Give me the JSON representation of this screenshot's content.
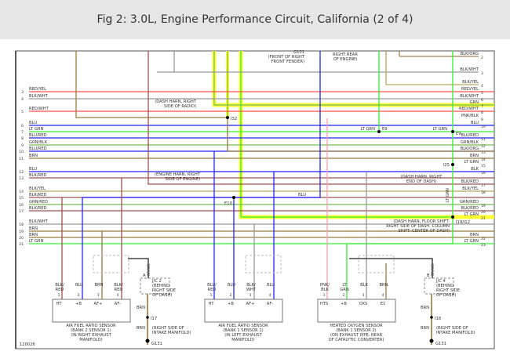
{
  "title": "Fig 2: 3.0L, Engine Performance Circuit, California (2 of 4)",
  "figure_id": "120026",
  "wire_colors": {
    "RED": "#ff4d4d",
    "BLK": "#999999",
    "BLU": "#2222ff",
    "LTGRN": "#33ee33",
    "GRN": "#77bb55",
    "BRN": "#9b7a3a",
    "PNK": "#f0a0b0",
    "BLKRED": "#a05050",
    "BLKYEL": "#b0a860",
    "BLKORG": "#a08050",
    "YEL": "#ffff33"
  },
  "left_wires": [
    {
      "n": "3",
      "label": "RED/YEL",
      "c": "RED"
    },
    {
      "n": "4",
      "label": "BLK/WHT",
      "c": "BLK"
    },
    {
      "n": "5",
      "label": "RED/WHT",
      "c": "RED"
    },
    {
      "n": "6",
      "label": "BLU",
      "c": "BLU"
    },
    {
      "n": "7",
      "label": "LT GRN",
      "c": "LTGRN"
    },
    {
      "n": "8",
      "label": "BLU/RED",
      "c": "BLU"
    },
    {
      "n": "9",
      "label": "GRN/BLK",
      "c": "GRN"
    },
    {
      "n": "10",
      "label": "BLU/RED",
      "c": "BLU"
    },
    {
      "n": "11",
      "label": "BRN",
      "c": "BRN"
    },
    {
      "n": "12",
      "label": "BLU",
      "c": "BLU"
    },
    {
      "n": "13",
      "label": "BLK/RED",
      "c": "BLKRED"
    },
    {
      "n": "14",
      "label": "BLK/YEL",
      "c": "BLKYEL"
    },
    {
      "n": "15",
      "label": "BLK/RED",
      "c": "BLKRED"
    },
    {
      "n": "16",
      "label": "GRN/RED",
      "c": "GRN"
    },
    {
      "n": "17",
      "label": "BLK/RED",
      "c": "BLKRED"
    },
    {
      "n": "18",
      "label": "BLK/WHT",
      "c": "BLK"
    },
    {
      "n": "19",
      "label": "BRN",
      "c": "BRN"
    },
    {
      "n": "20",
      "label": "BRN",
      "c": "BRN"
    },
    {
      "n": "21",
      "label": "LT GRN",
      "c": "LTGRN"
    }
  ],
  "right_wires": [
    {
      "n": "2",
      "label": "BLK/ORG",
      "c": "BLKORG"
    },
    {
      "n": "3",
      "label": "BLK/WHT",
      "c": "BLK"
    },
    {
      "n": "4",
      "label": "BLK/YEL",
      "c": "BLKYEL"
    },
    {
      "n": "5",
      "label": "RED/YEL",
      "c": "RED"
    },
    {
      "n": "6",
      "label": "BLK/WHT",
      "c": "BLK"
    },
    {
      "n": "7",
      "label": "GRN",
      "c": "GRN"
    },
    {
      "n": "8",
      "label": "RED/WHT",
      "c": "RED"
    },
    {
      "n": "9",
      "label": "PNK/BLK",
      "c": "PNK"
    },
    {
      "n": "10",
      "label": "BLU",
      "c": "BLU"
    },
    {
      "n": "11",
      "label": "BLU/RED",
      "c": "BLU"
    },
    {
      "n": "12",
      "label": "GRN/BLK",
      "c": "GRN"
    },
    {
      "n": "13",
      "label": "BLK/ORG",
      "c": "BLKORG"
    },
    {
      "n": "14",
      "label": "BRN",
      "c": "BRN"
    },
    {
      "n": "15",
      "label": "LT GRN",
      "c": "LTGRN"
    },
    {
      "n": "16",
      "label": "BLK",
      "c": "BLK"
    },
    {
      "n": "17",
      "label": "BLK/RED",
      "c": "BLKRED"
    },
    {
      "n": "18",
      "label": "BLK/YEL",
      "c": "BLKYEL"
    },
    {
      "n": "19",
      "label": "GRN/RED",
      "c": "GRN"
    },
    {
      "n": "20",
      "label": "BLK/RED",
      "c": "BLKRED"
    },
    {
      "n": "21",
      "label": "LT GRN",
      "c": "LTGRN"
    },
    {
      "n": "22",
      "label": "BRN",
      "c": "BRN"
    },
    {
      "n": "23",
      "label": "LT GRN",
      "c": "LTGRN"
    }
  ],
  "notes": {
    "g101": [
      "G101",
      "(FRONT OF RIGHT",
      "FRONT FENDER)"
    ],
    "e9_top": [
      "RIGHT REAR",
      "OF ENGINE)"
    ],
    "i32": [
      "(DASH HARN, RIGHT",
      "SIDE OF RADIO)"
    ],
    "i32_id": "I32",
    "e10": [
      "(ENGINE HARN, RIGHT",
      "SIDE OF ENGINE)"
    ],
    "e10_id": "E10",
    "e9_id": "E9",
    "e9_label": "LT GRN",
    "i25": [
      "(DASH HARN, RIGHT",
      "END OF DASH)"
    ],
    "i25_id": "I25",
    "i19": [
      "(DASH HARN, FLOOR SHIFT:",
      "RIGHT SIDE OF DASH, COLUMN",
      "SHIFT: CENTER OF DASH)"
    ],
    "i19_id": "I19/I12",
    "blu_mid": "BLU",
    "ltgrn_vert": "LT GRN"
  },
  "sensors": [
    {
      "title": [
        "AIR FUEL RATIO SENSOR",
        "(BANK 2 SENSOR 1)",
        "(IN RIGHT EXHAUST",
        "MANIFOLD)"
      ],
      "pins": [
        {
          "w": "BLK/ RED",
          "n": "1",
          "t": "HT",
          "c": "BLKRED"
        },
        {
          "w": "BLU",
          "n": "2",
          "t": "+B",
          "c": "BLU"
        },
        {
          "w": "BRN",
          "n": "3",
          "t": "AF+",
          "c": "BRN"
        },
        {
          "w": "BLK/ RED",
          "n": "4",
          "t": "AF-",
          "c": "BLKRED"
        }
      ]
    },
    {
      "title": [
        "AIR FUEL RATIO SENSOR",
        "(BANK 1 SENSOR 1)",
        "(IN LEFT EXHAUST",
        "MANIFOLD)"
      ],
      "pins": [
        {
          "w": "BLU/ RED",
          "n": "1",
          "t": "HT",
          "c": "BLU"
        },
        {
          "w": "BLU",
          "n": "2",
          "t": "+B",
          "c": "BLU"
        },
        {
          "w": "BLK/ WHT",
          "n": "3",
          "t": "AF+",
          "c": "BLK"
        },
        {
          "w": "BLU",
          "n": "4",
          "t": "AF-",
          "c": "BLU"
        }
      ]
    },
    {
      "title": [
        "HEATED OXYGEN SENSOR",
        "(BANK 1 SENSOR 2)",
        "(ON EXHAUST PIPE, REAR",
        "OF CATALYTIC CONVERTER)"
      ],
      "pins": [
        {
          "w": "PNK/ BLK",
          "n": "1",
          "t": "HTS",
          "c": "PNK"
        },
        {
          "w": "LT GRN",
          "n": "2",
          "t": "+B",
          "c": "LTGRN"
        },
        {
          "w": "BLK",
          "n": "3",
          "t": "OXS",
          "c": "BLK"
        },
        {
          "w": "BRN",
          "n": "4",
          "t": "E1",
          "c": "BRN"
        }
      ]
    }
  ],
  "grounds": [
    {
      "jc": [
        "J/C 2",
        "(BEHIND",
        "RIGHT SIDE",
        "OF DASH)"
      ],
      "pin": "A",
      "wire_in": "BR/WD",
      "wire_out": "BRN",
      "conn": "I17",
      "loc": [
        "(RIGHT SIDE OF",
        "INTAKE MANIFOLD)"
      ],
      "gnd": "G131"
    },
    {
      "jc": [
        "J/C 4",
        "(BEHIND",
        "RIGHT SIDE",
        "OF DASH)"
      ],
      "pin": "B",
      "wire_in": "BR/WD",
      "wire_in2": "BRN",
      "wire_out": "BRN",
      "conn": "I18",
      "loc": [
        "(RIGHT SIDE OF",
        "INTAKE MANIFOLD)"
      ],
      "gnd": "G131"
    }
  ]
}
